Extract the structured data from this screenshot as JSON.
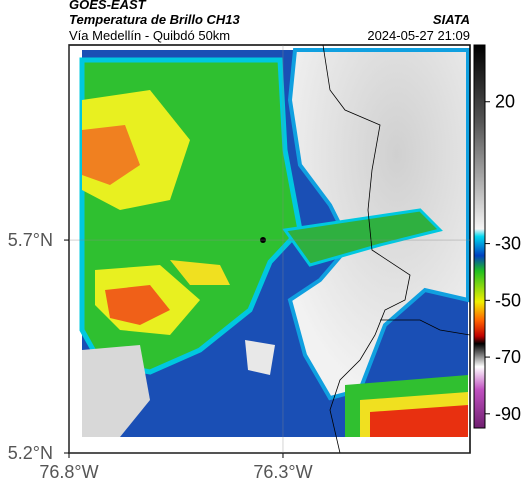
{
  "header": {
    "satellite": "GOES-EAST",
    "product": "Temperatura de Brillo CH13",
    "region": "Vía Medellín - Quibdó 50km",
    "source": "SIATA",
    "datetime": "2024-05-27 21:09"
  },
  "map": {
    "xlim": [
      -76.8,
      -75.863
    ],
    "ylim": [
      5.2,
      6.158
    ],
    "xticks": [
      {
        "value": -76.8,
        "label": "76.8°W"
      },
      {
        "value": -76.3,
        "label": "76.3°W"
      }
    ],
    "yticks": [
      {
        "value": 5.2,
        "label": "5.2°N"
      },
      {
        "value": 5.7,
        "label": "5.7°N"
      }
    ],
    "grid": true
  },
  "colorbar": {
    "lim": [
      -95,
      40
    ],
    "ticks": [
      20,
      -30,
      -50,
      -70,
      -90
    ]
  }
}
